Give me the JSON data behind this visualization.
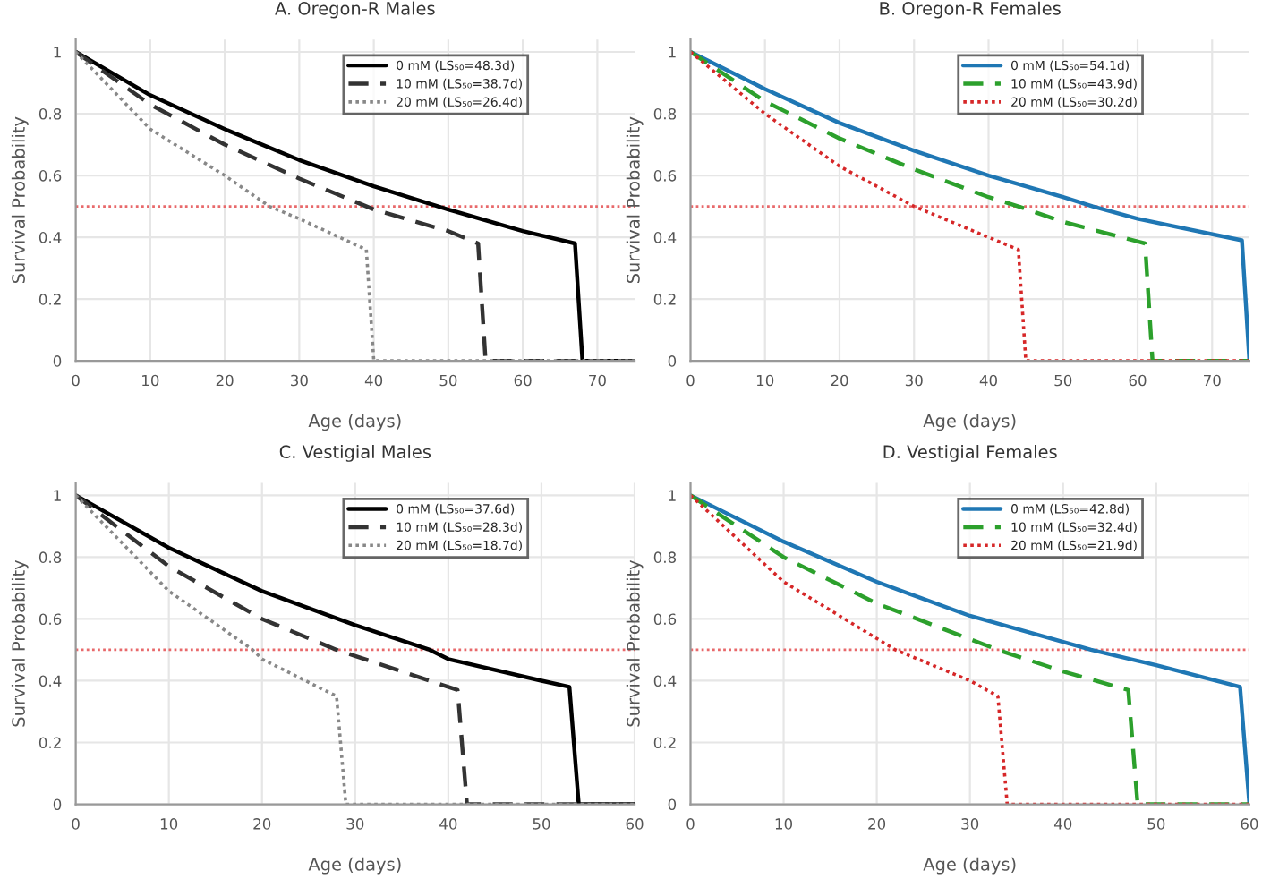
{
  "chart_data": [
    {
      "type": "line",
      "title": "A. Oregon-R Males",
      "xlabel": "Age (days)",
      "ylabel": "Survival Probability",
      "xlim": [
        0,
        75
      ],
      "xticks": [
        0,
        10,
        20,
        30,
        40,
        50,
        60,
        70
      ],
      "ylim": [
        0,
        1.04
      ],
      "yticks": [
        0,
        0.2,
        0.4,
        0.6,
        0.8,
        1
      ],
      "grid": true,
      "legend": "top right",
      "ref_lines": [
        {
          "axis": "y",
          "value": 0.5,
          "color": "#e8696b",
          "line_style": "dotted"
        }
      ],
      "series": [
        {
          "name": "0 mM (LS₅₀=48.3d)",
          "color": "#000000",
          "line_style": "solid",
          "x": [
            0,
            10,
            20,
            30,
            40,
            50,
            60,
            67,
            68,
            75
          ],
          "values": [
            1,
            0.86,
            0.75,
            0.65,
            0.565,
            0.49,
            0.42,
            0.38,
            0,
            0
          ]
        },
        {
          "name": "10 mM (LS₅₀=38.7d)",
          "color": "#333333",
          "line_style": "dashed",
          "x": [
            0,
            10,
            20,
            30,
            40,
            50,
            54,
            55,
            75
          ],
          "values": [
            1,
            0.83,
            0.7,
            0.59,
            0.49,
            0.42,
            0.38,
            0,
            0
          ]
        },
        {
          "name": "20 mM (LS₅₀=26.4d)",
          "color": "#888888",
          "line_style": "dotted",
          "x": [
            0,
            10,
            20,
            26,
            30,
            39,
            40,
            75
          ],
          "values": [
            1,
            0.75,
            0.6,
            0.5,
            0.46,
            0.36,
            0,
            0
          ]
        }
      ]
    },
    {
      "type": "line",
      "title": "B. Oregon-R Females",
      "xlabel": "Age (days)",
      "ylabel": "Survival Probability",
      "xlim": [
        0,
        75
      ],
      "xticks": [
        0,
        10,
        20,
        30,
        40,
        50,
        60,
        70
      ],
      "ylim": [
        0,
        1.04
      ],
      "yticks": [
        0,
        0.2,
        0.4,
        0.6,
        0.8,
        1
      ],
      "grid": true,
      "legend": "top right",
      "ref_lines": [
        {
          "axis": "y",
          "value": 0.5,
          "color": "#e8696b",
          "line_style": "dotted"
        }
      ],
      "series": [
        {
          "name": "0 mM (LS₅₀=54.1d)",
          "color": "#1f77b4",
          "line_style": "solid",
          "x": [
            0,
            10,
            20,
            30,
            40,
            50,
            54,
            60,
            74,
            75
          ],
          "values": [
            1,
            0.88,
            0.77,
            0.68,
            0.6,
            0.53,
            0.5,
            0.46,
            0.39,
            0
          ]
        },
        {
          "name": "10 mM (LS₅₀=43.9d)",
          "color": "#2ca02c",
          "line_style": "dashed",
          "x": [
            0,
            10,
            20,
            30,
            40,
            44,
            50,
            61,
            62,
            75
          ],
          "values": [
            1,
            0.84,
            0.72,
            0.62,
            0.53,
            0.5,
            0.45,
            0.38,
            0,
            0
          ]
        },
        {
          "name": "20 mM (LS₅₀=30.2d)",
          "color": "#d62728",
          "line_style": "dotted",
          "x": [
            0,
            10,
            20,
            30,
            40,
            44,
            45,
            75
          ],
          "values": [
            1,
            0.8,
            0.63,
            0.5,
            0.4,
            0.36,
            0,
            0
          ]
        }
      ]
    },
    {
      "type": "line",
      "title": "C. Vestigial Males",
      "xlabel": "Age (days)",
      "ylabel": "Survival Probability",
      "xlim": [
        0,
        60
      ],
      "xticks": [
        0,
        10,
        20,
        30,
        40,
        50,
        60
      ],
      "ylim": [
        0,
        1.04
      ],
      "yticks": [
        0,
        0.2,
        0.4,
        0.6,
        0.8,
        1
      ],
      "grid": true,
      "legend": "top right",
      "ref_lines": [
        {
          "axis": "y",
          "value": 0.5,
          "color": "#e8696b",
          "line_style": "dotted"
        }
      ],
      "series": [
        {
          "name": "0 mM (LS₅₀=37.6d)",
          "color": "#000000",
          "line_style": "solid",
          "x": [
            0,
            10,
            20,
            30,
            38,
            40,
            50,
            53,
            54,
            60
          ],
          "values": [
            1,
            0.83,
            0.69,
            0.58,
            0.5,
            0.47,
            0.4,
            0.38,
            0,
            0
          ]
        },
        {
          "name": "10 mM (LS₅₀=28.3d)",
          "color": "#333333",
          "line_style": "dashed",
          "x": [
            0,
            10,
            20,
            28,
            30,
            41,
            42,
            60
          ],
          "values": [
            1,
            0.77,
            0.6,
            0.5,
            0.48,
            0.37,
            0,
            0
          ]
        },
        {
          "name": "20 mM (LS₅₀=18.7d)",
          "color": "#888888",
          "line_style": "dotted",
          "x": [
            0,
            10,
            19,
            20,
            28,
            29,
            60
          ],
          "values": [
            1,
            0.69,
            0.5,
            0.47,
            0.35,
            0,
            0
          ]
        }
      ]
    },
    {
      "type": "line",
      "title": "D. Vestigial Females",
      "xlabel": "Age (days)",
      "ylabel": "Survival Probability",
      "xlim": [
        0,
        60
      ],
      "xticks": [
        0,
        10,
        20,
        30,
        40,
        50,
        60
      ],
      "ylim": [
        0,
        1.04
      ],
      "yticks": [
        0,
        0.2,
        0.4,
        0.6,
        0.8,
        1
      ],
      "grid": true,
      "legend": "top right",
      "ref_lines": [
        {
          "axis": "y",
          "value": 0.5,
          "color": "#e8696b",
          "line_style": "dotted"
        }
      ],
      "series": [
        {
          "name": "0 mM (LS₅₀=42.8d)",
          "color": "#1f77b4",
          "line_style": "solid",
          "x": [
            0,
            10,
            20,
            30,
            43,
            50,
            59,
            60
          ],
          "values": [
            1,
            0.85,
            0.72,
            0.61,
            0.5,
            0.45,
            0.38,
            0
          ]
        },
        {
          "name": "10 mM (LS₅₀=32.4d)",
          "color": "#2ca02c",
          "line_style": "dashed",
          "x": [
            0,
            10,
            20,
            33,
            40,
            47,
            48,
            60
          ],
          "values": [
            1,
            0.8,
            0.65,
            0.5,
            0.43,
            0.37,
            0,
            0
          ]
        },
        {
          "name": "20 mM (LS₅₀=21.9d)",
          "color": "#d62728",
          "line_style": "dotted",
          "x": [
            0,
            10,
            22,
            30,
            33,
            34,
            60
          ],
          "values": [
            1,
            0.72,
            0.5,
            0.4,
            0.35,
            0,
            0
          ]
        }
      ]
    }
  ]
}
